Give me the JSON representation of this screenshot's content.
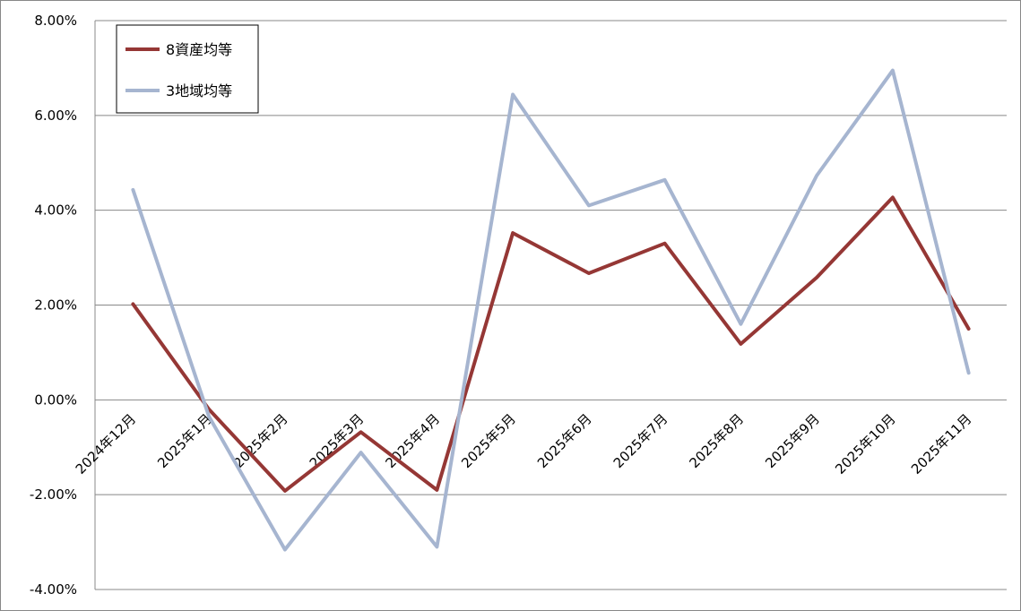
{
  "chart_data": {
    "type": "line",
    "categories": [
      "2024年12月",
      "2025年1月",
      "2025年2月",
      "2025年3月",
      "2025年4月",
      "2025年5月",
      "2025年6月",
      "2025年7月",
      "2025年8月",
      "2025年9月",
      "2025年10月",
      "2025年11月"
    ],
    "series": [
      {
        "name": "8資産均等",
        "color": "#953735",
        "values": [
          2.02,
          -0.2,
          -1.92,
          -0.68,
          -1.9,
          3.52,
          2.67,
          3.3,
          1.18,
          2.58,
          4.27,
          1.5
        ]
      },
      {
        "name": "3地域均等",
        "color": "#A6B5D0",
        "values": [
          4.43,
          -0.35,
          -3.16,
          -1.11,
          -3.1,
          6.44,
          4.1,
          4.64,
          1.6,
          4.73,
          6.95,
          0.57
        ]
      }
    ],
    "y_ticks": [
      "8.00%",
      "6.00%",
      "4.00%",
      "2.00%",
      "0.00%",
      "-2.00%",
      "-4.00%"
    ],
    "ylim": [
      -4,
      8
    ],
    "title": "",
    "xlabel": "",
    "ylabel": "",
    "grid": true,
    "legend_position": "top-left"
  }
}
